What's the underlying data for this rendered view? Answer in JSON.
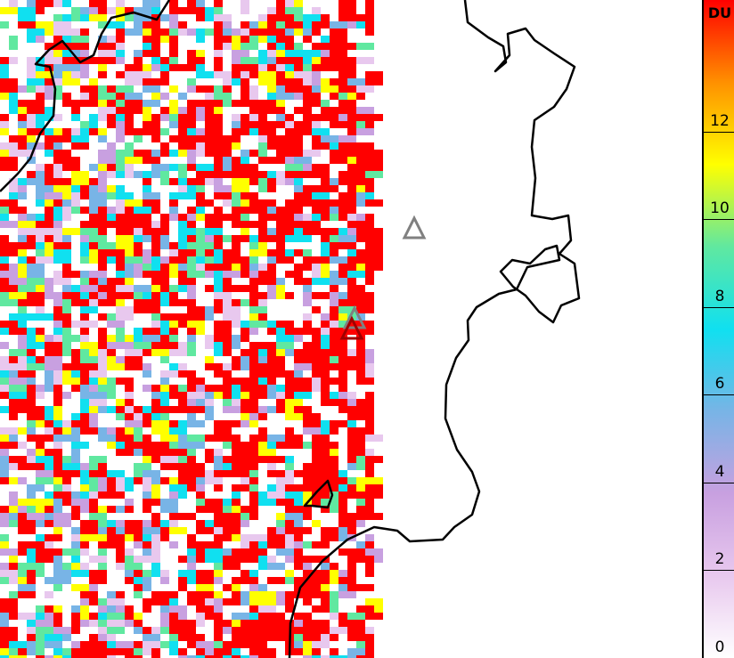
{
  "map": {
    "variable_unit": "DU",
    "colorbar": {
      "range": [
        0,
        15
      ],
      "ticks": [
        "0",
        "2",
        "4",
        "6",
        "8",
        "10",
        "12"
      ],
      "stops": [
        "#ffffff",
        "#e8c8ee",
        "#c8a0e0",
        "#78b4e6",
        "#10e0f0",
        "#60e8a0",
        "#ffff00",
        "#ff9000",
        "#ff0000"
      ]
    },
    "markers": [
      {
        "type": "triangle",
        "color": "#808080"
      },
      {
        "type": "triangle",
        "color": "#808080"
      },
      {
        "type": "triangle",
        "color": "#a00000"
      }
    ]
  }
}
